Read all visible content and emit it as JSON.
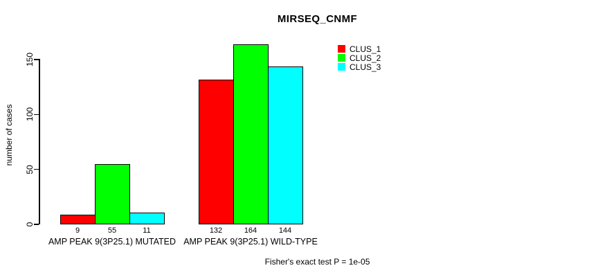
{
  "chart_data": {
    "type": "bar",
    "title": "MIRSEQ_CNMF",
    "ylabel": "number of cases",
    "xlabel": "",
    "ylim": [
      0,
      150
    ],
    "yticks": [
      0,
      50,
      100,
      150
    ],
    "grid": false,
    "legend_position": "top-right",
    "bar_value_labels": true,
    "categories": [
      "AMP PEAK 9(3P25.1) MUTATED",
      "AMP PEAK 9(3P25.1) WILD-TYPE"
    ],
    "series": [
      {
        "name": "CLUS_1",
        "color": "#ff0000",
        "values": [
          9,
          132
        ]
      },
      {
        "name": "CLUS_2",
        "color": "#00ff00",
        "values": [
          55,
          164
        ]
      },
      {
        "name": "CLUS_3",
        "color": "#00ffff",
        "values": [
          11,
          144
        ]
      }
    ],
    "annotation": "Fisher's exact test P = 1e-05"
  }
}
